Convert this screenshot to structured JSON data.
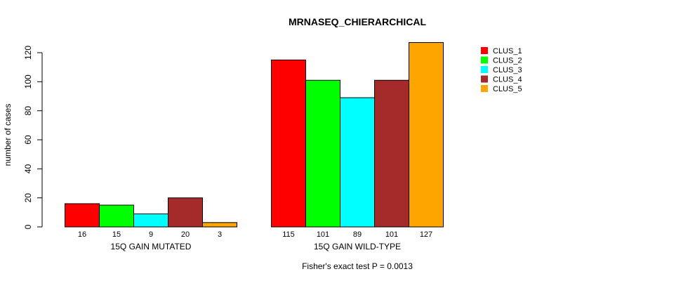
{
  "chart_data": {
    "type": "bar",
    "title": "MRNASEQ_CHIERARCHICAL",
    "xlabel": "",
    "ylabel": "number of cases",
    "ylim": [
      0,
      120
    ],
    "yticks": [
      "0",
      "20",
      "40",
      "60",
      "80",
      "100",
      "120"
    ],
    "categories": [
      "15Q GAIN MUTATED",
      "15Q GAIN WILD-TYPE"
    ],
    "series": [
      {
        "name": "CLUS_1",
        "color": "#ff0000",
        "values": [
          16,
          115
        ]
      },
      {
        "name": "CLUS_2",
        "color": "#00ff00",
        "values": [
          15,
          101
        ]
      },
      {
        "name": "CLUS_3",
        "color": "#00ffff",
        "values": [
          9,
          89
        ]
      },
      {
        "name": "CLUS_4",
        "color": "#a52a2a",
        "values": [
          20,
          101
        ]
      },
      {
        "name": "CLUS_5",
        "color": "#ffa500",
        "values": [
          3,
          127
        ]
      }
    ],
    "legend_position": "top-right",
    "grid": false,
    "footnote": "Fisher's exact test P = 0.0013"
  }
}
